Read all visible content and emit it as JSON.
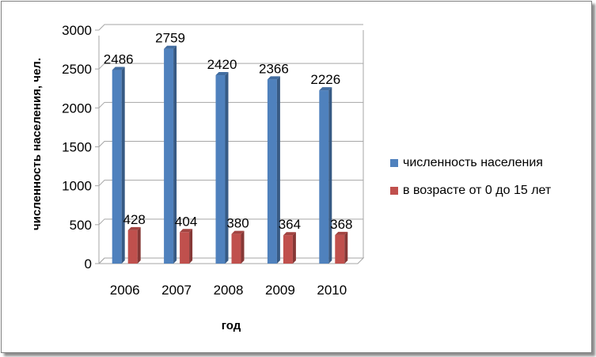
{
  "chart_data": {
    "type": "bar",
    "categories": [
      "2006",
      "2007",
      "2008",
      "2009",
      "2010"
    ],
    "series": [
      {
        "name": "численность населения",
        "values": [
          2486,
          2759,
          2420,
          2366,
          2226
        ],
        "color": "#4F81BD"
      },
      {
        "name": "в возрасте от 0 до 15 лет",
        "values": [
          428,
          404,
          380,
          364,
          368
        ],
        "color": "#C0504D"
      }
    ],
    "title": "",
    "xlabel": "год",
    "ylabel": "численность населения, чел.",
    "ylim": [
      0,
      3000
    ],
    "yticks": [
      0,
      500,
      1000,
      1500,
      2000,
      2500,
      3000
    ],
    "grid": true,
    "legend_position": "right",
    "style": "3d-clustered-columns"
  }
}
